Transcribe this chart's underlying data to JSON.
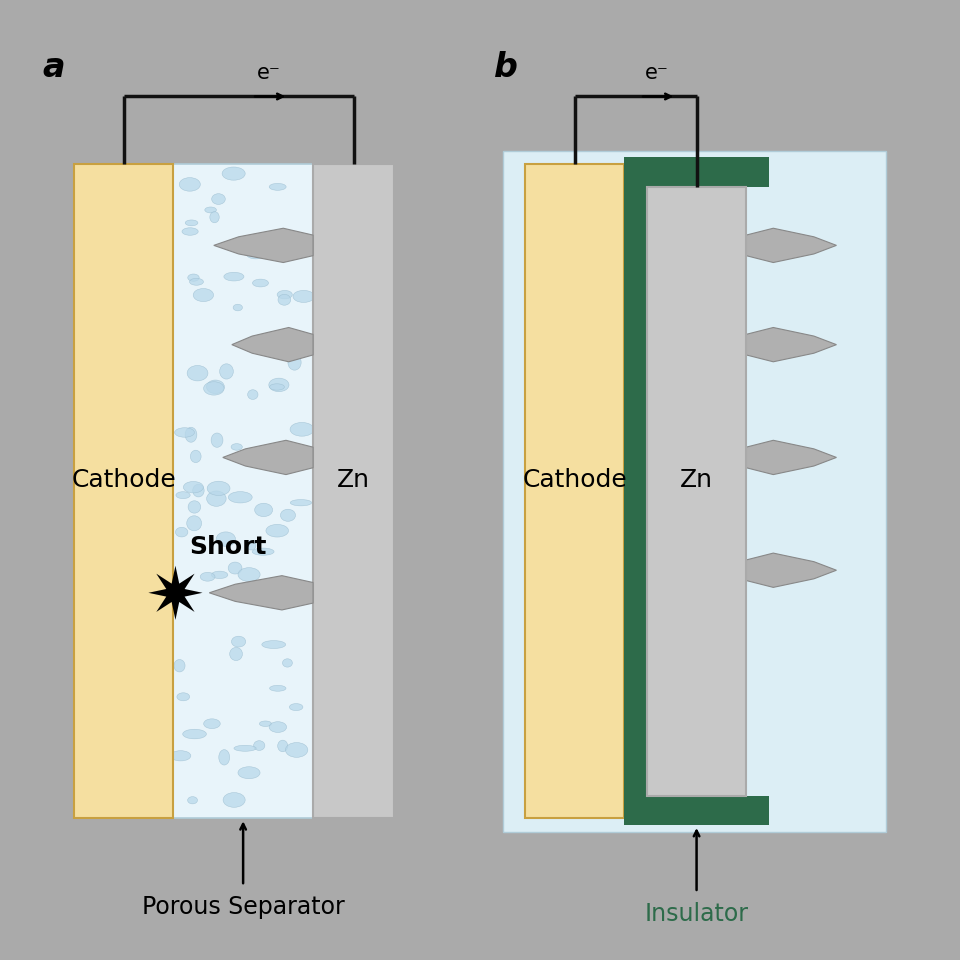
{
  "bg_color": "#aaaaaa",
  "canvas_color": "#ffffff",
  "cathode_color": "#f5dfa0",
  "cathode_border": "#c8a040",
  "zn_color": "#c8c8c8",
  "zn_border": "#aaaaaa",
  "separator_color": "#e8f4fa",
  "separator_border": "#b0ccd8",
  "blob_color": "#b8d8ea",
  "blob_edge": "#9bbdd0",
  "dendrite_fill": "#b0b0b0",
  "dendrite_edge": "#888888",
  "insulator_color": "#2d6b4a",
  "insulator_bg": "#dceef5",
  "wire_color": "#111111",
  "short_color": "#111111",
  "label_a": "a",
  "label_b": "b",
  "cathode_label": "Cathode",
  "zn_label": "Zn",
  "short_label": "Short",
  "separator_label": "Porous Separator",
  "insulator_label": "Insulator",
  "electron_label": "e⁻",
  "font_size_labels": 18,
  "font_size_ab": 24,
  "font_size_elec": 15
}
